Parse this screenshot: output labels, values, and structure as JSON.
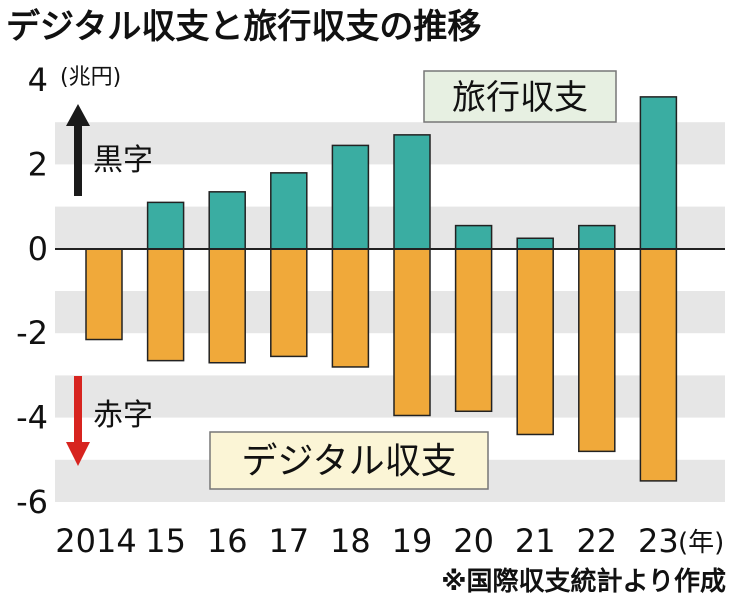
{
  "title": "デジタル収支と旅行収支の推移",
  "unit_label": "(兆円)",
  "year_suffix": "(年)",
  "source_note": "※国際収支統計より作成",
  "surplus_label": "黒字",
  "deficit_label": "赤字",
  "legend": {
    "travel": "旅行収支",
    "digital": "デジタル収支"
  },
  "colors": {
    "travel": "#3aada2",
    "digital": "#f0a93a",
    "band": "#e6e6e6",
    "surplus_arrow": "#1a1a1a",
    "deficit_arrow": "#d7241f"
  },
  "chart_data": {
    "type": "bar",
    "categories": [
      "2014",
      "15",
      "16",
      "17",
      "18",
      "19",
      "20",
      "21",
      "22",
      "23"
    ],
    "series": [
      {
        "name": "旅行収支",
        "values": [
          0,
          1.1,
          1.35,
          1.8,
          2.45,
          2.7,
          0.55,
          0.25,
          0.55,
          3.6
        ]
      },
      {
        "name": "デジタル収支",
        "values": [
          -2.15,
          -2.65,
          -2.7,
          -2.55,
          -2.8,
          -3.95,
          -3.85,
          -4.4,
          -4.8,
          -5.5
        ]
      }
    ],
    "ylim": [
      -6,
      4
    ],
    "yticks": [
      "-6",
      "-4",
      "-2",
      "0",
      "2",
      "4"
    ],
    "grid": "horizontal bands"
  }
}
